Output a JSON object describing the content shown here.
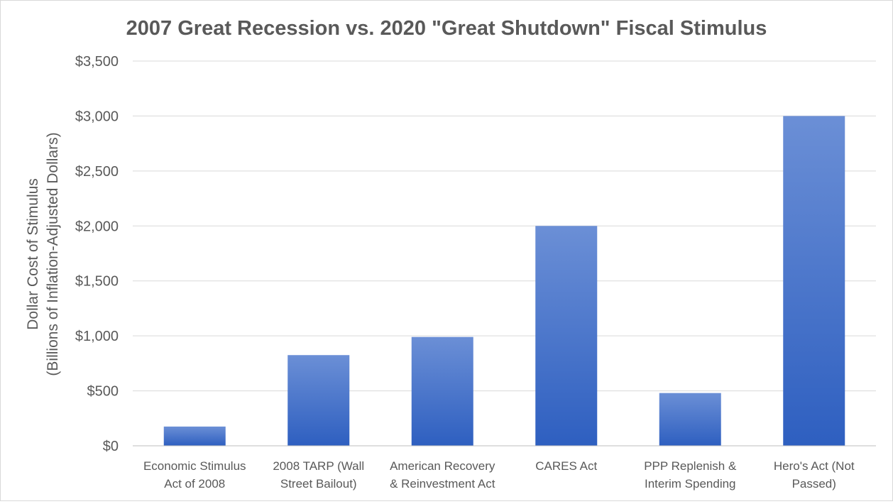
{
  "chart_data": {
    "type": "bar",
    "title": "2007 Great Recession vs. 2020 \"Great Shutdown\" Fiscal Stimulus",
    "ylabel_lines": [
      "Dollar Cost of Stimulus",
      "(Billions of Inflation-Adjusted Dollars)"
    ],
    "xlabel": "",
    "categories": [
      [
        "Economic Stimulus",
        "Act of 2008"
      ],
      [
        "2008 TARP (Wall",
        "Street Bailout)"
      ],
      [
        "American Recovery",
        "& Reinvestment Act"
      ],
      [
        "CARES Act"
      ],
      [
        "PPP Replenish &",
        "Interim Spending"
      ],
      [
        "Hero's Act (Not",
        "Passed)"
      ]
    ],
    "values": [
      175,
      825,
      990,
      2000,
      480,
      3000
    ],
    "ylim": [
      0,
      3500
    ],
    "yticks": [
      0,
      500,
      1000,
      1500,
      2000,
      2500,
      3000,
      3500
    ],
    "ytick_labels": [
      "$0",
      "$500",
      "$1,000",
      "$1,500",
      "$2,000",
      "$2,500",
      "$3,000",
      "$3,500"
    ],
    "grid": true,
    "legend": "none",
    "colors": {
      "bar_top": "#6b8fd6",
      "bar_bottom": "#2e5fc0"
    }
  }
}
